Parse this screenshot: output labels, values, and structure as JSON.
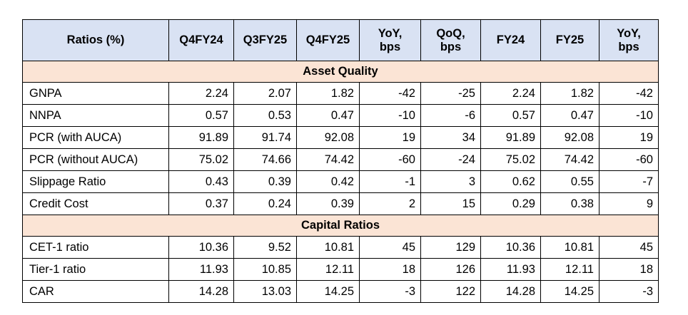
{
  "table": {
    "columns": [
      "Ratios (%)",
      "Q4FY24",
      "Q3FY25",
      "Q4FY25",
      "YoY,\nbps",
      "QoQ,\nbps",
      "FY24",
      "FY25",
      "YoY,\nbps"
    ],
    "sections": [
      {
        "title": "Asset Quality",
        "rows": [
          [
            "GNPA",
            "2.24",
            "2.07",
            "1.82",
            "-42",
            "-25",
            "2.24",
            "1.82",
            "-42"
          ],
          [
            "NNPA",
            "0.57",
            "0.53",
            "0.47",
            "-10",
            "-6",
            "0.57",
            "0.47",
            "-10"
          ],
          [
            "PCR (with AUCA)",
            "91.89",
            "91.74",
            "92.08",
            "19",
            "34",
            "91.89",
            "92.08",
            "19"
          ],
          [
            "PCR (without AUCA)",
            "75.02",
            "74.66",
            "74.42",
            "-60",
            "-24",
            "75.02",
            "74.42",
            "-60"
          ],
          [
            "Slippage Ratio",
            "0.43",
            "0.39",
            "0.42",
            "-1",
            "3",
            "0.62",
            "0.55",
            "-7"
          ],
          [
            "Credit Cost",
            "0.37",
            "0.24",
            "0.39",
            "2",
            "15",
            "0.29",
            "0.38",
            "9"
          ]
        ]
      },
      {
        "title": "Capital Ratios",
        "rows": [
          [
            "CET-1 ratio",
            "10.36",
            "9.52",
            "10.81",
            "45",
            "129",
            "10.36",
            "10.81",
            "45"
          ],
          [
            "Tier-1 ratio",
            "11.93",
            "10.85",
            "12.11",
            "18",
            "126",
            "11.93",
            "12.11",
            "18"
          ],
          [
            "CAR",
            "14.28",
            "13.03",
            "14.25",
            "-3",
            "122",
            "14.28",
            "14.25",
            "-3"
          ]
        ]
      }
    ]
  }
}
